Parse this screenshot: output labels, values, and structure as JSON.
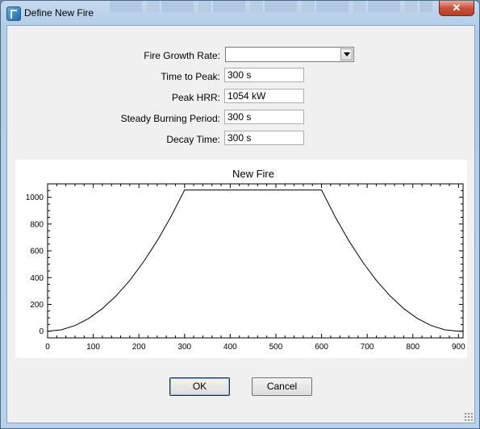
{
  "window": {
    "title": "Define New Fire",
    "close_glyph": "✕"
  },
  "form": {
    "growth_rate": {
      "label": "Fire Growth Rate:",
      "value": ""
    },
    "time_to_peak": {
      "label": "Time to Peak:",
      "value": "300 s"
    },
    "peak_hrr": {
      "label": "Peak HRR:",
      "value": "1054 kW"
    },
    "steady_period": {
      "label": "Steady Burning Period:",
      "value": "300 s"
    },
    "decay_time": {
      "label": "Decay Time:",
      "value": "300 s"
    }
  },
  "buttons": {
    "ok": "OK",
    "cancel": "Cancel"
  },
  "chart_data": {
    "type": "line",
    "title": "New Fire",
    "xlabel": "",
    "ylabel": "",
    "xlim": [
      0,
      910
    ],
    "ylim": [
      -50,
      1100
    ],
    "x_ticks": [
      0,
      100,
      200,
      300,
      400,
      500,
      600,
      700,
      800,
      900
    ],
    "y_ticks": [
      0,
      200,
      400,
      600,
      800,
      1000
    ],
    "grid": false,
    "series": [
      {
        "x": [
          0,
          30,
          60,
          90,
          120,
          150,
          180,
          210,
          240,
          270,
          300,
          600,
          630,
          660,
          690,
          720,
          750,
          780,
          810,
          840,
          870,
          900,
          910
        ],
        "y": [
          0,
          10.5,
          42.2,
          94.9,
          168.6,
          263.5,
          379.4,
          516.5,
          674.6,
          853.7,
          1054,
          1054,
          853.7,
          674.6,
          516.5,
          379.4,
          263.5,
          168.6,
          94.9,
          42.2,
          10.5,
          0,
          0
        ],
        "color": "#000000"
      }
    ]
  }
}
